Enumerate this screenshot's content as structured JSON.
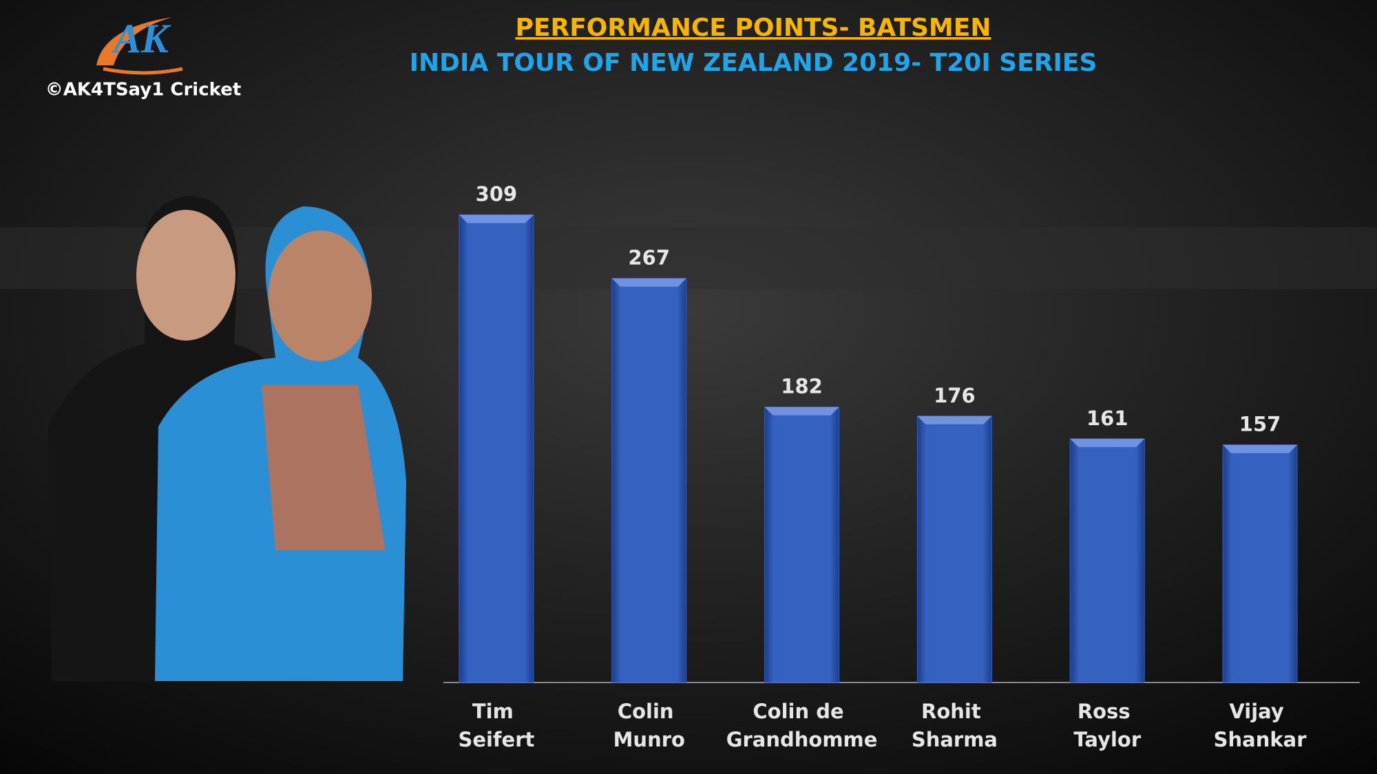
{
  "watermark": "©AK4TSay1 Cricket",
  "logo": "AK",
  "chart_data": {
    "type": "bar",
    "title": "PERFORMANCE POINTS- BATSMEN",
    "subtitle": "INDIA TOUR OF NEW ZEALAND 2019- T20I SERIES",
    "categories": [
      "Tim Seifert",
      "Colin Munro",
      "Colin de Grandhomme",
      "Rohit Sharma",
      "Ross Taylor",
      "Vijay Shankar"
    ],
    "values": [
      309,
      267,
      182,
      176,
      161,
      157
    ],
    "color": "#3561c0",
    "ylim": [
      0,
      330
    ]
  }
}
